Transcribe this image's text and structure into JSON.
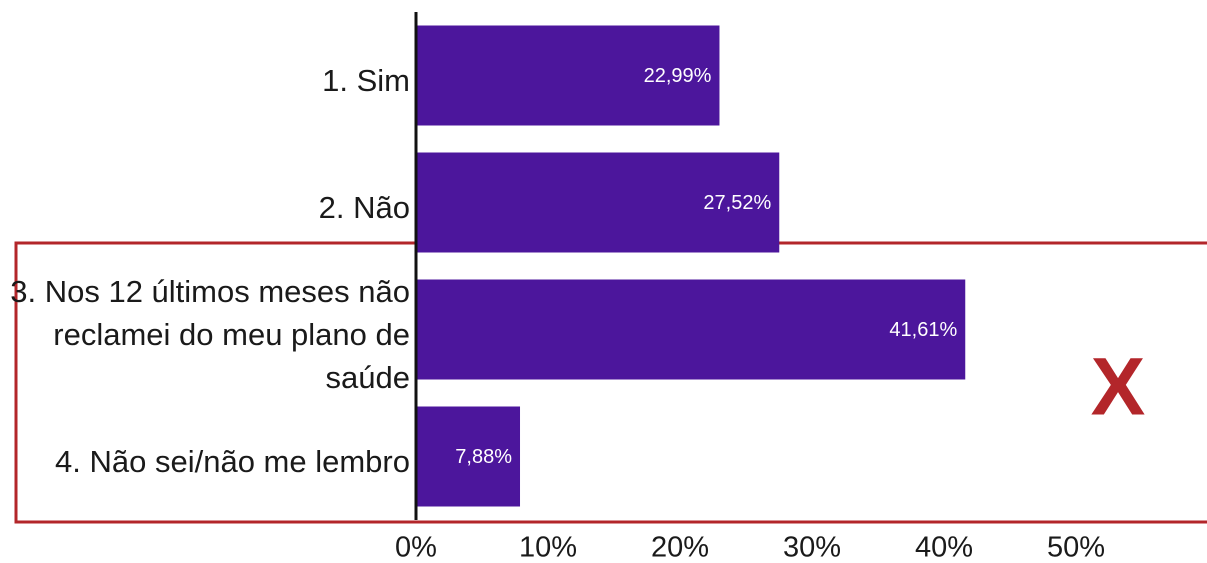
{
  "chart_data": {
    "type": "bar",
    "orientation": "horizontal",
    "categories": [
      "1. Sim",
      "2. Não",
      "3. Nos 12 últimos meses não reclamei do meu plano de saúde",
      "4. Não sei/não me lembro"
    ],
    "values": [
      22.99,
      27.52,
      41.61,
      7.88
    ],
    "value_labels": [
      "22,99%",
      "27,52%",
      "41,61%",
      "7,88%"
    ],
    "color": "#4c169c",
    "xlim": [
      0,
      60
    ],
    "xticks": [
      {
        "value": 0,
        "label": "0%"
      },
      {
        "value": 10,
        "label": "10%"
      },
      {
        "value": 20,
        "label": "20%"
      },
      {
        "value": 30,
        "label": "30%"
      },
      {
        "value": 40,
        "label": "40%"
      },
      {
        "value": 50,
        "label": "50%"
      }
    ],
    "grid": false,
    "annotation": "X"
  }
}
